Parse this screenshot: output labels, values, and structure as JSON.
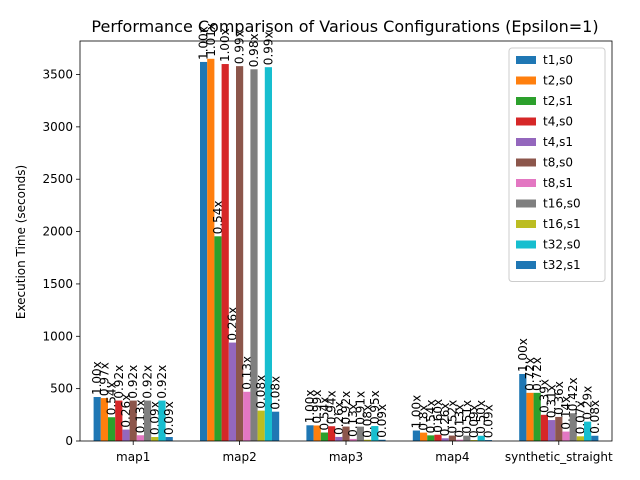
{
  "chart_data": {
    "type": "bar",
    "title": "Performance Comparison of Various Configurations (Epsilon=1)",
    "xlabel": "",
    "ylabel": "Execution Time (seconds)",
    "ylim": [
      0,
      3820
    ],
    "yticks": [
      0,
      500,
      1000,
      1500,
      2000,
      2500,
      3000,
      3500
    ],
    "grid": false,
    "legend_position": "top-right",
    "categories": [
      "map1",
      "map2",
      "map3",
      "map4",
      "synthetic_straight"
    ],
    "series": [
      {
        "name": "t1,s0",
        "color": "#1f77b4",
        "values": [
          420,
          3620,
          150,
          100,
          640
        ],
        "labels": [
          "1.00x",
          "1.00x",
          "1.00x",
          "1.00x",
          "1.00x"
        ]
      },
      {
        "name": "t2,s0",
        "color": "#ff7f0e",
        "values": [
          410,
          3650,
          148,
          80,
          460
        ],
        "labels": [
          "0.97x",
          "1.01x",
          "0.99x",
          "0.8x",
          "0.72x"
        ]
      },
      {
        "name": "t2,s1",
        "color": "#2ca02c",
        "values": [
          227,
          1955,
          81,
          54,
          460
        ],
        "labels": [
          "0.54x",
          "0.54x",
          "0.54x",
          "0.54x",
          "0.72x"
        ]
      },
      {
        "name": "t4,s0",
        "color": "#d62728",
        "values": [
          386,
          3600,
          141,
          60,
          250
        ],
        "labels": [
          "0.92x",
          "1.00x",
          "0.94x",
          "0.60x",
          "0.39x"
        ]
      },
      {
        "name": "t4,s1",
        "color": "#9467bd",
        "values": [
          109,
          940,
          39,
          26,
          200
        ],
        "labels": [
          "0.26x",
          "0.26x",
          "0.26x",
          "0.26x",
          "0.31x"
        ]
      },
      {
        "name": "t8,s0",
        "color": "#8c564b",
        "values": [
          386,
          3580,
          138,
          52,
          230
        ],
        "labels": [
          "0.92x",
          "0.99x",
          "0.92x",
          "0.52x",
          "0.36x"
        ]
      },
      {
        "name": "t8,s1",
        "color": "#e377c2",
        "values": [
          55,
          470,
          20,
          13,
          90
        ],
        "labels": [
          "0.13x",
          "0.13x",
          "0.13x",
          "0.13x",
          "0.14x"
        ]
      },
      {
        "name": "t16,s0",
        "color": "#7f7f7f",
        "values": [
          386,
          3550,
          137,
          51,
          265
        ],
        "labels": [
          "0.92x",
          "0.98x",
          "0.91x",
          "0.51x",
          "0.42x"
        ]
      },
      {
        "name": "t16,s1",
        "color": "#bcbd22",
        "values": [
          38,
          290,
          12,
          9,
          45
        ],
        "labels": [
          "0.09x",
          "0.08x",
          "0.08x",
          "0.09x",
          "0.07x"
        ]
      },
      {
        "name": "t32,s0",
        "color": "#17becf",
        "values": [
          386,
          3570,
          143,
          50,
          185
        ],
        "labels": [
          "0.92x",
          "0.99x",
          "0.95x",
          "0.50x",
          "0.29x"
        ]
      },
      {
        "name": "t32,s1",
        "color": "#1f77b4",
        "values": [
          38,
          280,
          12,
          9,
          50
        ],
        "labels": [
          "0.09x",
          "0.08x",
          "0.09x",
          "0.09x",
          "0.08x"
        ]
      }
    ]
  }
}
